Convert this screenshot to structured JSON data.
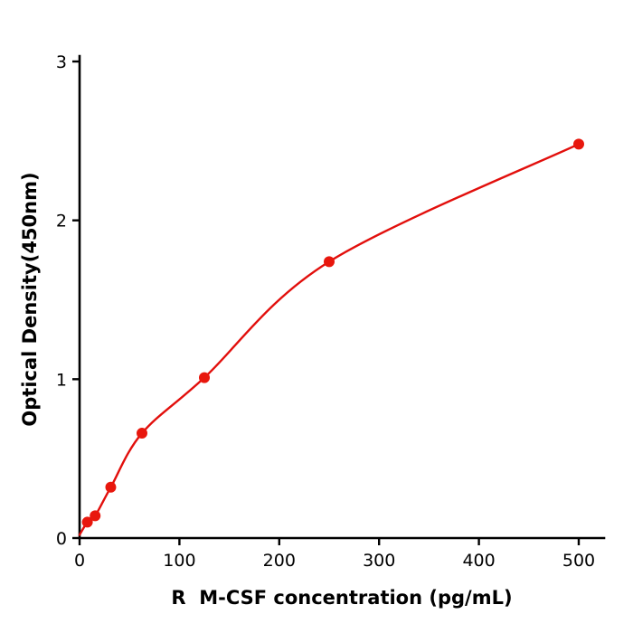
{
  "chart_data": {
    "type": "scatter",
    "title": "",
    "xlabel": "R  M-CSF concentration (pg/mL)",
    "ylabel": "Optical Density(450nm)",
    "x": [
      7.8,
      15.6,
      31.25,
      62.5,
      125,
      250,
      500
    ],
    "y": [
      0.1,
      0.14,
      0.32,
      0.66,
      1.01,
      1.74,
      2.48
    ],
    "curve_start_x": 0,
    "curve_start_y": 0.02,
    "xticks": [
      0,
      100,
      200,
      300,
      400,
      500
    ],
    "yticks": [
      0,
      1,
      2,
      3
    ],
    "xlim": [
      0,
      500
    ],
    "ylim": [
      0,
      3
    ],
    "grid": false,
    "legend": "none",
    "point_color": "#e8170d",
    "line_color": "#e20f0c",
    "axis_color": "#000000"
  }
}
